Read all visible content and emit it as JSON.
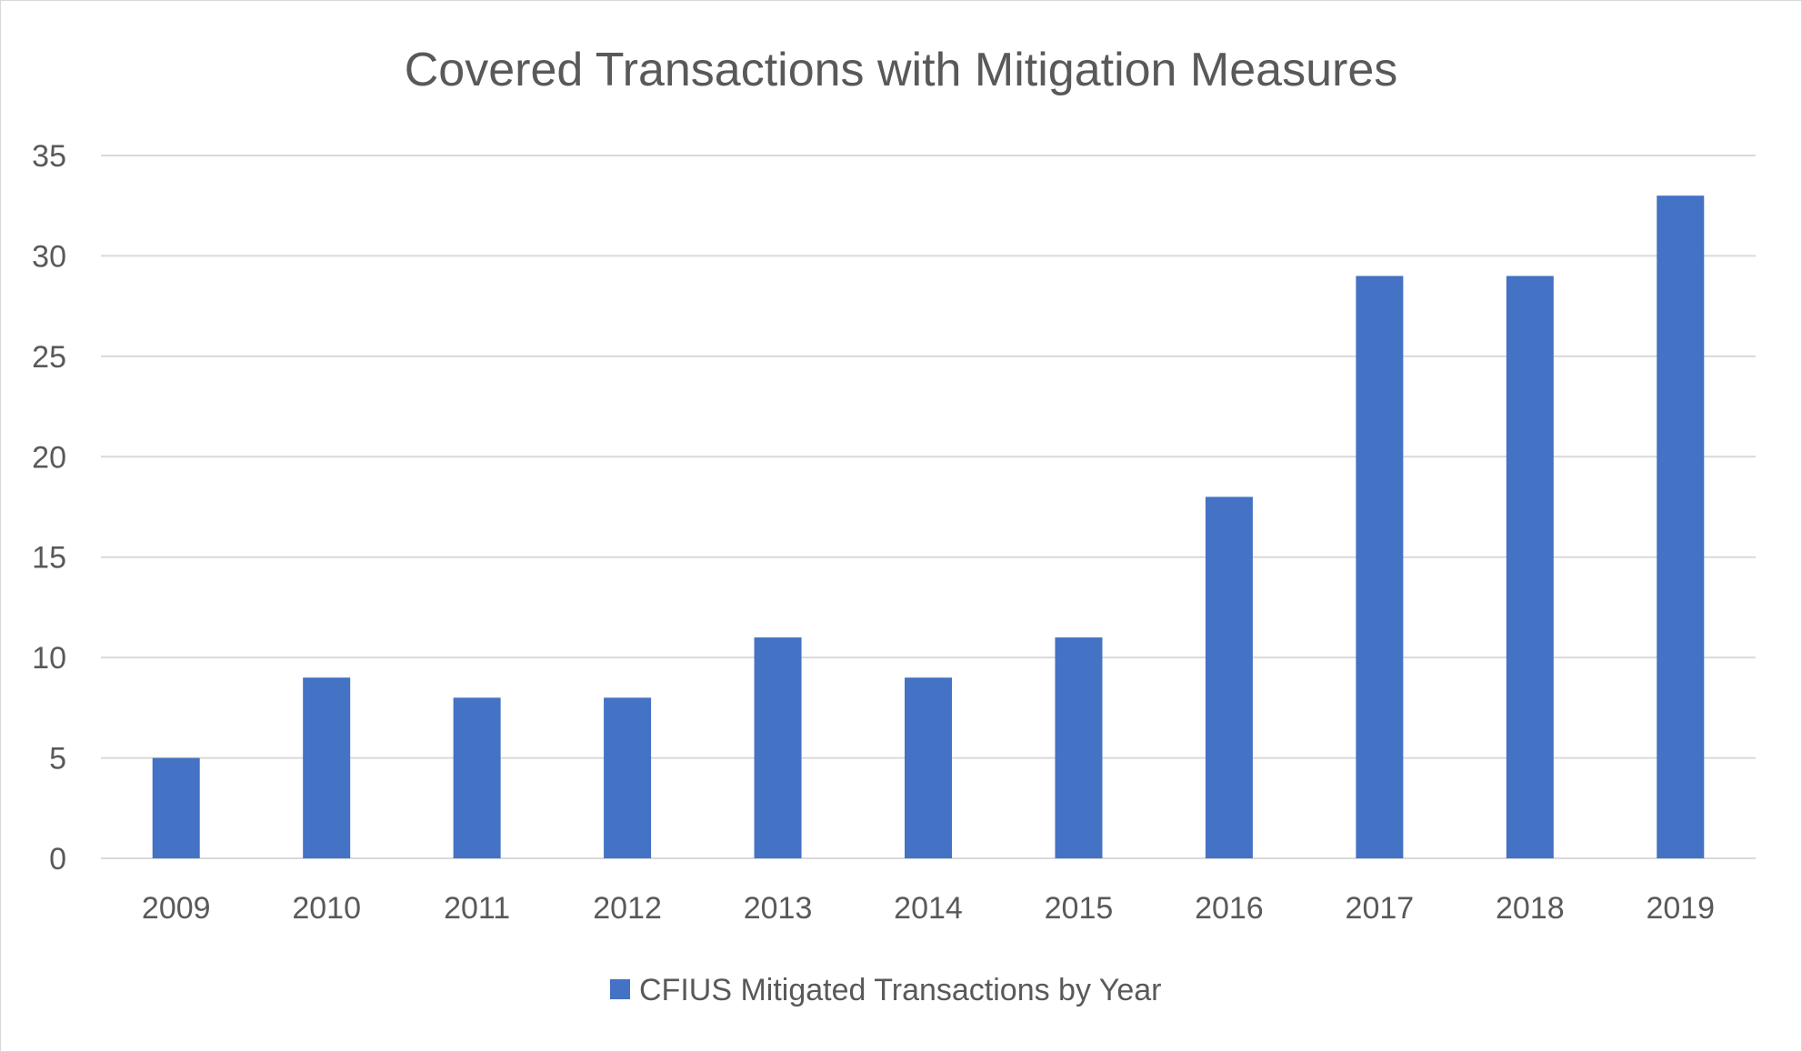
{
  "chart_data": {
    "type": "bar",
    "title": "Covered Transactions with Mitigation Measures",
    "categories": [
      "2009",
      "2010",
      "2011",
      "2012",
      "2013",
      "2014",
      "2015",
      "2016",
      "2017",
      "2018",
      "2019"
    ],
    "series": [
      {
        "name": "CFIUS Mitigated Transactions by Year",
        "values": [
          5,
          9,
          8,
          8,
          11,
          9,
          11,
          18,
          29,
          29,
          33
        ],
        "color": "#4472C4"
      }
    ],
    "xlabel": "",
    "ylabel": "",
    "ylim": [
      0,
      35
    ],
    "yticks": [
      0,
      5,
      10,
      15,
      20,
      25,
      30,
      35
    ],
    "grid": true,
    "legend_position": "bottom"
  }
}
